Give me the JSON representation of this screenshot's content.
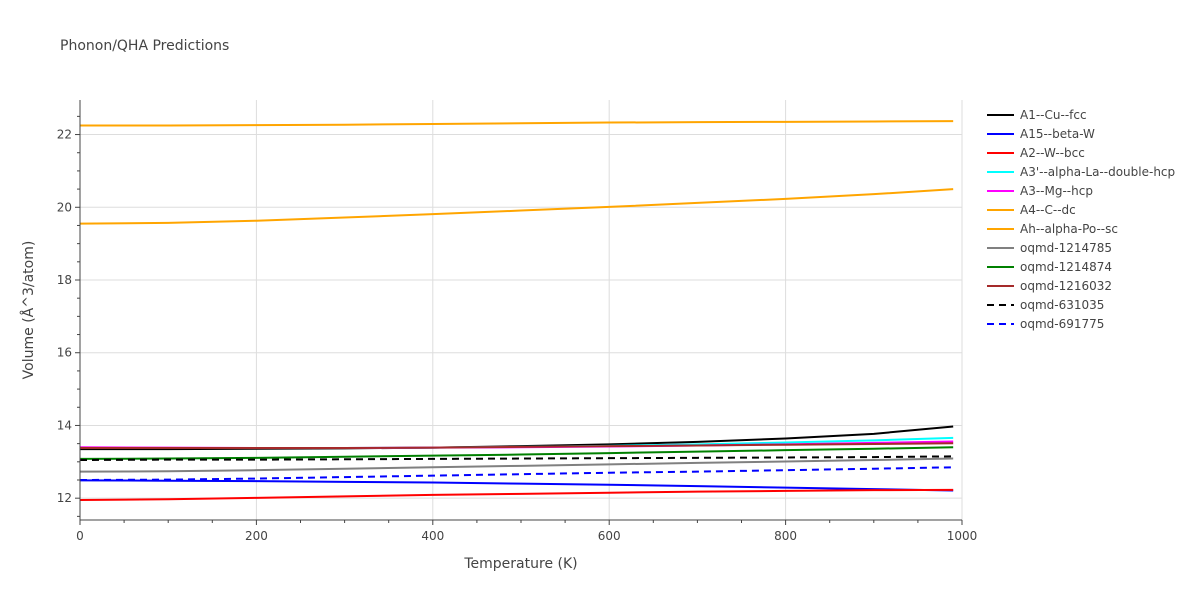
{
  "chart_data": {
    "type": "line",
    "title": "Phonon/QHA Predictions",
    "xlabel": "Temperature (K)",
    "ylabel": "Volume (Å^3/atom)",
    "xlim": [
      0,
      1000
    ],
    "ylim": [
      11.4,
      22.95
    ],
    "xticks": [
      0,
      200,
      400,
      600,
      800,
      1000
    ],
    "yticks": [
      12,
      14,
      16,
      18,
      20,
      22
    ],
    "grid": true,
    "legend_position": "right",
    "x": [
      0,
      100,
      200,
      300,
      400,
      500,
      600,
      700,
      800,
      900,
      990
    ],
    "series": [
      {
        "name": "A1--Cu--fcc",
        "color": "#000000",
        "dash": false,
        "values": [
          13.35,
          13.35,
          13.36,
          13.37,
          13.39,
          13.43,
          13.48,
          13.55,
          13.64,
          13.77,
          13.97
        ]
      },
      {
        "name": "A15--beta-W",
        "color": "#0000ff",
        "dash": false,
        "values": [
          12.49,
          12.48,
          12.47,
          12.45,
          12.43,
          12.4,
          12.37,
          12.33,
          12.29,
          12.25,
          12.21
        ]
      },
      {
        "name": "A2--W--bcc",
        "color": "#ff0000",
        "dash": false,
        "values": [
          11.95,
          11.97,
          12.01,
          12.05,
          12.09,
          12.12,
          12.15,
          12.18,
          12.2,
          12.22,
          12.23
        ]
      },
      {
        "name": "A3'--alpha-La--double-hcp",
        "color": "#00ffff",
        "dash": false,
        "values": [
          13.38,
          13.38,
          13.38,
          13.38,
          13.39,
          13.41,
          13.44,
          13.48,
          13.53,
          13.59,
          13.66
        ]
      },
      {
        "name": "A3--Mg--hcp",
        "color": "#ff00ff",
        "dash": false,
        "values": [
          13.4,
          13.39,
          13.38,
          13.38,
          13.39,
          13.4,
          13.42,
          13.45,
          13.48,
          13.52,
          13.56
        ]
      },
      {
        "name": "A4--C--dc",
        "color": "#ffa500",
        "dash": false,
        "values": [
          19.55,
          19.57,
          19.63,
          19.72,
          19.81,
          19.91,
          20.01,
          20.12,
          20.23,
          20.36,
          20.5
        ]
      },
      {
        "name": "Ah--alpha-Po--sc",
        "color": "#ffa500",
        "dash": false,
        "values": [
          22.25,
          22.25,
          22.26,
          22.27,
          22.29,
          22.31,
          22.33,
          22.34,
          22.35,
          22.36,
          22.37
        ]
      },
      {
        "name": "oqmd-1214785",
        "color": "#808080",
        "dash": false,
        "values": [
          12.73,
          12.74,
          12.77,
          12.81,
          12.85,
          12.89,
          12.93,
          12.97,
          13.01,
          13.05,
          13.09
        ]
      },
      {
        "name": "oqmd-1214874",
        "color": "#008000",
        "dash": false,
        "values": [
          13.08,
          13.09,
          13.11,
          13.14,
          13.17,
          13.2,
          13.24,
          13.28,
          13.32,
          13.36,
          13.4
        ]
      },
      {
        "name": "oqmd-1216032",
        "color": "#a52a2a",
        "dash": false,
        "values": [
          13.38,
          13.38,
          13.38,
          13.38,
          13.39,
          13.41,
          13.43,
          13.45,
          13.47,
          13.49,
          13.51
        ]
      },
      {
        "name": "oqmd-631035",
        "color": "#000000",
        "dash": true,
        "values": [
          13.05,
          13.06,
          13.06,
          13.07,
          13.08,
          13.09,
          13.1,
          13.11,
          13.12,
          13.13,
          13.15
        ]
      },
      {
        "name": "oqmd-691775",
        "color": "#0000ff",
        "dash": true,
        "values": [
          12.5,
          12.51,
          12.54,
          12.58,
          12.62,
          12.66,
          12.7,
          12.73,
          12.77,
          12.81,
          12.85
        ]
      }
    ]
  }
}
